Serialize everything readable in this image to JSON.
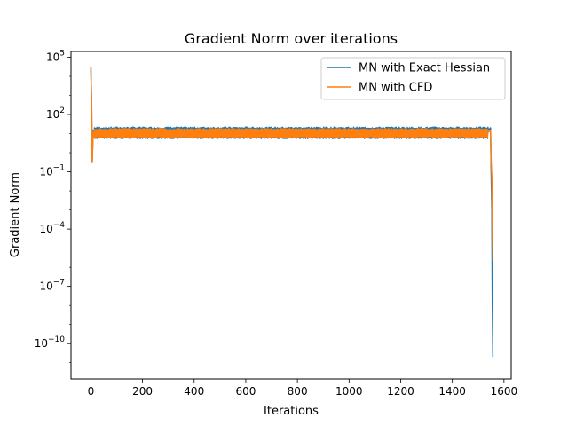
{
  "chart_data": {
    "type": "line",
    "title": "Gradient Norm  over iterations",
    "xlabel": "Iterations",
    "ylabel": "Gradient Norm",
    "xlim": [
      -77,
      1628
    ],
    "ylim_log10": [
      -11.85,
      5.3
    ],
    "yscale": "log",
    "grid": false,
    "legend_position": "top-right",
    "x_ticks": [
      0,
      200,
      400,
      600,
      800,
      1000,
      1200,
      1400,
      1600
    ],
    "x_tick_labels": [
      "0",
      "200",
      "400",
      "600",
      "800",
      "1000",
      "1200",
      "1400",
      "1600"
    ],
    "y_ticks_log10": [
      5,
      2,
      -1,
      -4,
      -7,
      -10
    ],
    "y_tick_bases": [
      "10",
      "10",
      "10",
      "10",
      "10",
      "10"
    ],
    "y_tick_exponents": [
      "5",
      "2",
      "−1",
      "−4",
      "−7",
      "−10"
    ],
    "series": [
      {
        "name": "MN with Exact Hessian",
        "color": "#1f77b4",
        "band_low": 6.0,
        "band_high": 20.0,
        "points": [
          [
            0,
            30000
          ],
          [
            3,
            300
          ],
          [
            5,
            0.35
          ],
          [
            8,
            5
          ],
          [
            10,
            15
          ],
          [
            1540,
            15
          ],
          [
            1548,
            20
          ],
          [
            1550,
            0.2
          ],
          [
            1553,
            0.001
          ],
          [
            1555,
            1e-08
          ],
          [
            1557,
            2e-11
          ]
        ]
      },
      {
        "name": "MN with CFD",
        "color": "#ff7f0e",
        "band_low": 6.5,
        "band_high": 17.0,
        "points": [
          [
            0,
            30000
          ],
          [
            3,
            250
          ],
          [
            5,
            0.3
          ],
          [
            8,
            6
          ],
          [
            10,
            12
          ],
          [
            1540,
            12
          ],
          [
            1548,
            15
          ],
          [
            1550,
            0.5
          ],
          [
            1553,
            0.05
          ],
          [
            1555,
            0.0001
          ],
          [
            1557,
            2e-06
          ]
        ]
      }
    ]
  }
}
